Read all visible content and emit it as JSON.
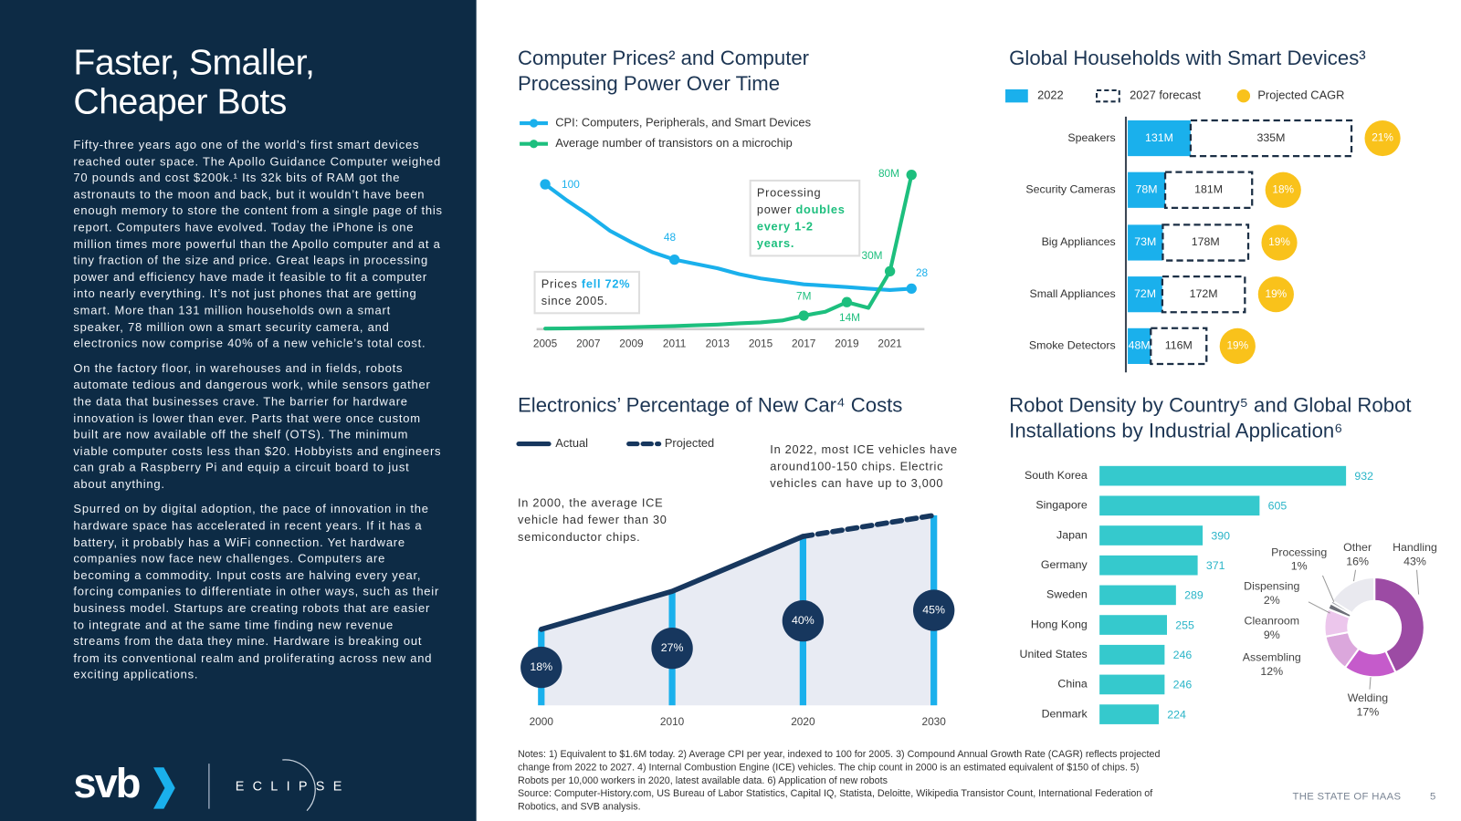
{
  "sidebar": {
    "title": "Faster, Smaller, Cheaper Bots",
    "paragraphs": [
      "Fifty-three years ago one of the world’s first smart devices reached outer space. The Apollo Guidance Computer weighed 70 pounds and cost $200k.¹ Its 32k bits of RAM got the astronauts to the moon and back, but it wouldn’t have been enough memory to store the content from a single page of this report. Computers have evolved. Today the iPhone is one million times more powerful than the Apollo computer and at a tiny fraction of the size and price. Great leaps in processing power and efficiency have made it feasible to fit a computer into nearly everything. It’s not just phones that are getting smart. More than 131 million households own a smart speaker, 78 million own a smart security camera, and electronics now comprise 40% of a new vehicle’s total cost.",
      "On the factory floor, in warehouses and in fields, robots automate tedious and dangerous work, while sensors gather the data that businesses crave. The barrier for hardware innovation is lower than ever. Parts that were once custom built are now available off the shelf (OTS). The minimum viable computer costs less than $20. Hobbyists and engineers can grab a Raspberry Pi and equip a circuit board to just about anything.",
      "Spurred on by digital adoption, the pace of innovation in the hardware space has accelerated in recent years. If it has a battery, it probably has a WiFi connection. Yet hardware companies now face new challenges. Computers are becoming a commodity. Input costs are halving every year, forcing companies to differentiate in other ways, such as their business model. Startups are creating robots that are easier to integrate and at the same time finding new revenue streams from the data they mine. Hardware is breaking out from its conventional realm and proliferating across new and exciting applications."
    ],
    "logos": [
      "svb",
      "ECLIPSE"
    ]
  },
  "chart_data": [
    {
      "type": "line",
      "title": "Computer Prices² and Computer Processing Power Over Time",
      "x": [
        2005,
        2006,
        2007,
        2008,
        2009,
        2010,
        2011,
        2012,
        2013,
        2014,
        2015,
        2016,
        2017,
        2018,
        2019,
        2020,
        2021,
        2022
      ],
      "series": [
        {
          "name": "CPI: Computers, Peripherals, and Smart Devices",
          "color": "#1ab0ec",
          "values": [
            100,
            89,
            79,
            68,
            60,
            53,
            48,
            45,
            42,
            38,
            35,
            33,
            31,
            30,
            29,
            28,
            27,
            28
          ],
          "value_labels": [
            "100",
            null,
            null,
            null,
            null,
            null,
            "48",
            null,
            null,
            null,
            null,
            null,
            null,
            null,
            null,
            null,
            null,
            "28"
          ]
        },
        {
          "name": "Average number of transistors on a microchip",
          "color": "#1dbf7e",
          "axis": "y2",
          "values": [
            0.3,
            0.4,
            0.6,
            0.8,
            1,
            1.3,
            1.6,
            2,
            2.4,
            3,
            3.5,
            4.5,
            7,
            9,
            14,
            11,
            30,
            80
          ],
          "value_labels": [
            null,
            null,
            null,
            null,
            null,
            null,
            null,
            null,
            null,
            null,
            null,
            null,
            "7M",
            null,
            "14M",
            null,
            "30M",
            "80M"
          ]
        }
      ],
      "xlim": [
        2004.6,
        2022.6
      ],
      "xticks": [
        2005,
        2007,
        2009,
        2011,
        2013,
        2015,
        2017,
        2019,
        2021
      ],
      "ylim": [
        0,
        110
      ],
      "y2lim": [
        0,
        82.6
      ],
      "annotations": [
        {
          "parts": [
            "Processing power ",
            "doubles every 1-2 years."
          ],
          "color": "#1dbf7e"
        },
        {
          "parts": [
            "Prices ",
            "fell 72%",
            " since 2005."
          ],
          "color": "#1ab0ec"
        }
      ]
    },
    {
      "type": "bar",
      "orientation": "horizontal",
      "stacked": true,
      "title": "Global Households with Smart Devices³",
      "categories": [
        "Speakers",
        "Security Cameras",
        "Big Appliances",
        "Small Appliances",
        "Smoke Detectors"
      ],
      "series": [
        {
          "name": "2022",
          "color": "#1ab0ec",
          "values": [
            131,
            78,
            73,
            72,
            48
          ],
          "value_labels": [
            "131M",
            "78M",
            "73M",
            "72M",
            "48M"
          ]
        },
        {
          "name": "2027 forecast",
          "color": "#1b2f45",
          "dashed": true,
          "values": [
            335,
            181,
            178,
            172,
            116
          ],
          "value_labels": [
            "335M",
            "181M",
            "178M",
            "172M",
            "116M"
          ]
        },
        {
          "name": "Projected CAGR",
          "color": "#f9c21b",
          "marker": "circle",
          "values": [
            21,
            18,
            19,
            19,
            19
          ],
          "value_labels": [
            "21%",
            "18%",
            "19%",
            "19%",
            "19%"
          ]
        }
      ],
      "xlim": [
        0,
        600
      ]
    },
    {
      "type": "area",
      "title": "Electronics’ Percentage of New Car⁴ Costs",
      "x": [
        2000,
        2010,
        2020,
        2030
      ],
      "series": [
        {
          "name": "Actual",
          "color": "#17375e",
          "values": [
            18,
            27,
            40,
            null
          ],
          "value_labels": [
            "18%",
            "27%",
            "40%",
            null
          ]
        },
        {
          "name": "Projected",
          "color": "#17375e",
          "dashed": true,
          "values": [
            null,
            null,
            40,
            45
          ],
          "value_labels": [
            null,
            null,
            null,
            "45%"
          ]
        }
      ],
      "xlim": [
        2000,
        2030
      ],
      "xticks": [
        2000,
        2010,
        2020,
        2030
      ],
      "ylim": [
        0,
        50
      ],
      "area_color": "#e8ebf3",
      "bar_color": "#1ab0ec",
      "annotations": [
        "In 2000, the average ICE vehicle had fewer than 30 semiconductor chips.",
        "In 2022, most ICE vehicles have around100-150 chips. Electric vehicles can have up to 3,000"
      ]
    },
    {
      "type": "bar",
      "orientation": "horizontal",
      "title": "Robot Density by Country⁵ and Global Robot Installations by Industrial Application⁶",
      "categories": [
        "South Korea",
        "Singapore",
        "Japan",
        "Germany",
        "Sweden",
        "Hong Kong",
        "United States",
        "China",
        "Denmark"
      ],
      "values": [
        932,
        605,
        390,
        371,
        289,
        255,
        246,
        246,
        224
      ],
      "color": "#35c9cd",
      "label_color": "#2bb5c8",
      "xlim": [
        0,
        1000
      ]
    },
    {
      "type": "pie",
      "donut": true,
      "categories": [
        "Handling",
        "Welding",
        "Assembling",
        "Cleanroom",
        "Dispensing",
        "Processing",
        "Other"
      ],
      "values": [
        43,
        17,
        12,
        9,
        2,
        1,
        16
      ],
      "value_labels": [
        "43%",
        "17%",
        "12%",
        "9%",
        "2%",
        "1%",
        "16%"
      ],
      "colors": [
        "#9c4ba4",
        "#c55bcb",
        "#dba7dc",
        "#ecc6ec",
        "#6d6f78",
        "#a4a6ae",
        "#e9e9ef"
      ]
    }
  ],
  "notes": "Notes: 1) Equivalent to $1.6M today. 2) Average CPI per year, indexed to 100 for 2005. 3) Compound Annual Growth Rate (CAGR) reflects  projected change from 2022 to 2027. 4) Internal Combustion Engine (ICE) vehicles. The chip count in 2000 is an estimated equivalent of $150 of chips. 5) Robots per 10,000 workers in 2020, latest available data. 6) Application of new robots",
  "source": "Source: Computer-History.com, US Bureau of Labor Statistics, Capital IQ, Statista, Deloitte, Wikipedia Transistor Count, International Federation of Robotics, and SVB analysis.",
  "footer": {
    "label": "THE STATE OF HAAS",
    "page": 5
  }
}
